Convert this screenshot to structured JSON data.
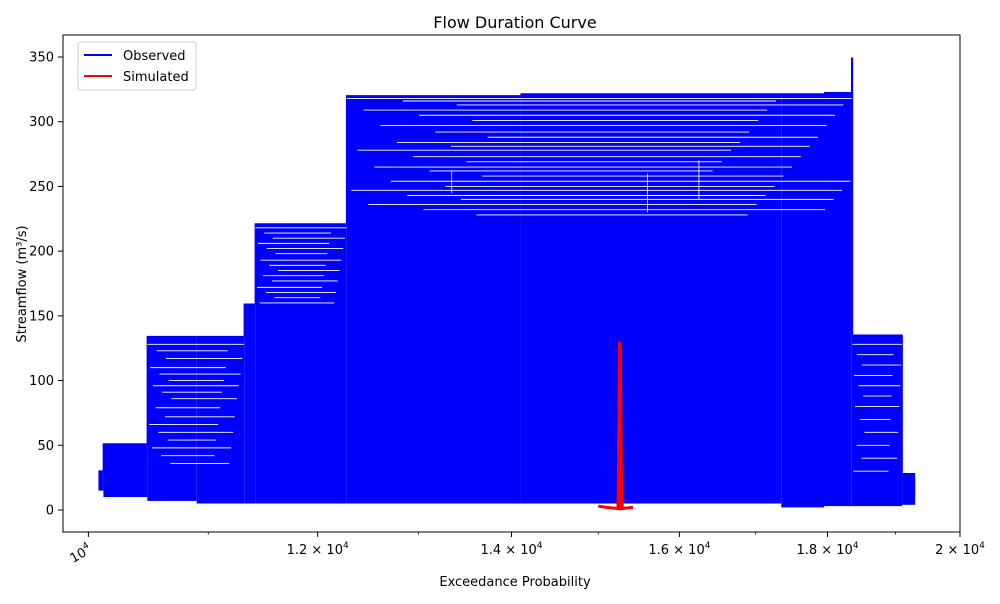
{
  "chart_data": {
    "type": "line",
    "title": "Flow Duration Curve",
    "xlabel": "Exceedance Probability",
    "ylabel": "Streamflow (m³/s)",
    "x_scale": "log",
    "xlim": [
      9800,
      20000
    ],
    "ylim": [
      -17,
      367
    ],
    "grid": false,
    "legend_position": "upper-left",
    "x_ticks": [
      {
        "value": 10000,
        "mantissa": "",
        "base": "10",
        "exp": "4"
      },
      {
        "value": 12000,
        "mantissa": "1.2 × ",
        "base": "10",
        "exp": "4"
      },
      {
        "value": 14000,
        "mantissa": "1.4 × ",
        "base": "10",
        "exp": "4"
      },
      {
        "value": 16000,
        "mantissa": "1.6 × ",
        "base": "10",
        "exp": "4"
      },
      {
        "value": 18000,
        "mantissa": "1.8 × ",
        "base": "10",
        "exp": "4"
      },
      {
        "value": 20000,
        "mantissa": "2 × ",
        "base": "10",
        "exp": "4"
      }
    ],
    "y_ticks": [
      0,
      50,
      100,
      150,
      200,
      250,
      300,
      350
    ],
    "series": [
      {
        "name": "Observed",
        "color": "#0000ff",
        "envelope": [
          {
            "x0": 10080,
            "x1": 10120,
            "lo": 15,
            "hi": 30
          },
          {
            "x0": 10120,
            "x1": 10480,
            "lo": 10,
            "hi": 51
          },
          {
            "x0": 10480,
            "x1": 10900,
            "lo": 7,
            "hi": 134
          },
          {
            "x0": 10900,
            "x1": 11320,
            "lo": 5,
            "hi": 134
          },
          {
            "x0": 11320,
            "x1": 11420,
            "lo": 5,
            "hi": 159
          },
          {
            "x0": 11420,
            "x1": 12280,
            "lo": 5,
            "hi": 221
          },
          {
            "x0": 12280,
            "x1": 14100,
            "lo": 5,
            "hi": 320
          },
          {
            "x0": 14100,
            "x1": 17350,
            "lo": 5,
            "hi": 322
          },
          {
            "x0": 17350,
            "x1": 17950,
            "lo": 2,
            "hi": 322
          },
          {
            "x0": 17950,
            "x1": 18350,
            "lo": 3,
            "hi": 323
          },
          {
            "x0": 18350,
            "x1": 18360,
            "lo": 3,
            "hi": 349
          },
          {
            "x0": 18360,
            "x1": 19100,
            "lo": 3,
            "hi": 135
          },
          {
            "x0": 19100,
            "x1": 19300,
            "lo": 4,
            "hi": 28
          }
        ],
        "steps": [
          {
            "x0": 10080,
            "x1": 10120,
            "y": 30
          },
          {
            "x0": 10120,
            "x1": 10480,
            "y": 51
          },
          {
            "x0": 10480,
            "x1": 11320,
            "y": 134
          },
          {
            "x0": 11320,
            "x1": 11420,
            "y": 159
          },
          {
            "x0": 11420,
            "x1": 12280,
            "y": 221
          },
          {
            "x0": 12280,
            "x1": 18350,
            "y": 320
          },
          {
            "x0": 18350,
            "x1": 18360,
            "y": 349
          },
          {
            "x0": 18360,
            "x1": 19100,
            "y": 135
          },
          {
            "x0": 19100,
            "x1": 19300,
            "y": 28
          }
        ]
      },
      {
        "name": "Simulated",
        "color": "#ff0000",
        "center_x": 15260,
        "baseline": [
          {
            "x": 15000,
            "y": 3
          },
          {
            "x": 15100,
            "y": 2
          },
          {
            "x": 15260,
            "y": 1
          },
          {
            "x": 15420,
            "y": 2
          }
        ],
        "spike": [
          {
            "x": 15240,
            "y": 0
          },
          {
            "x": 15250,
            "y": 20
          },
          {
            "x": 15258,
            "y": 60
          },
          {
            "x": 15262,
            "y": 100
          },
          {
            "x": 15265,
            "y": 130
          },
          {
            "x": 15270,
            "y": 90
          },
          {
            "x": 15278,
            "y": 40
          },
          {
            "x": 15290,
            "y": 15
          },
          {
            "x": 15300,
            "y": 0
          }
        ]
      }
    ]
  }
}
